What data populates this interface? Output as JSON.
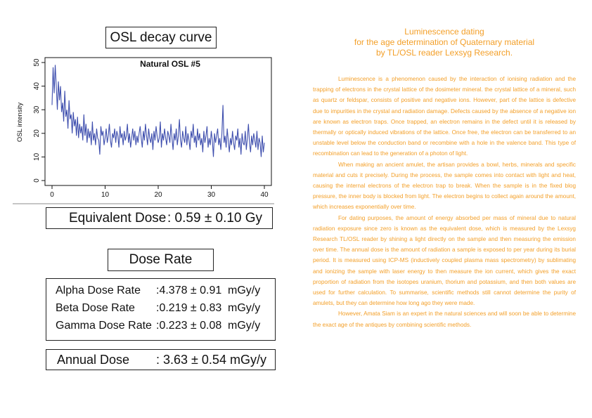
{
  "osl_title": "OSL decay curve",
  "chart_data": {
    "type": "line",
    "title": "Natural OSL #5",
    "xlabel": "",
    "ylabel": "OSL intensity",
    "xlim": [
      0,
      40
    ],
    "ylim": [
      0,
      50
    ],
    "x_ticks": [
      "0",
      "10",
      "20",
      "30",
      "40"
    ],
    "y_ticks": [
      "0",
      "10",
      "20",
      "30",
      "40",
      "50"
    ],
    "grid": false,
    "color": "#3f4fae",
    "x": [
      0.0,
      0.2,
      0.4,
      0.6,
      0.8,
      1.0,
      1.2,
      1.4,
      1.6,
      1.8,
      2.0,
      2.2,
      2.4,
      2.6,
      2.8,
      3.0,
      3.2,
      3.4,
      3.6,
      3.8,
      4.0,
      4.2,
      4.4,
      4.6,
      4.8,
      5.0,
      5.2,
      5.4,
      5.6,
      5.8,
      6.0,
      6.2,
      6.4,
      6.6,
      6.8,
      7.0,
      7.2,
      7.4,
      7.6,
      7.8,
      8.0,
      8.2,
      8.4,
      8.6,
      8.8,
      9.0,
      9.2,
      9.4,
      9.6,
      9.8,
      10.0,
      10.2,
      10.4,
      10.6,
      10.8,
      11.0,
      11.2,
      11.4,
      11.6,
      11.8,
      12.0,
      12.2,
      12.4,
      12.6,
      12.8,
      13.0,
      13.2,
      13.4,
      13.6,
      13.8,
      14.0,
      14.2,
      14.4,
      14.6,
      14.8,
      15.0,
      15.2,
      15.4,
      15.6,
      15.8,
      16.0,
      16.2,
      16.4,
      16.6,
      16.8,
      17.0,
      17.2,
      17.4,
      17.6,
      17.8,
      18.0,
      18.2,
      18.4,
      18.6,
      18.8,
      19.0,
      19.2,
      19.4,
      19.6,
      19.8,
      20.0,
      20.2,
      20.4,
      20.6,
      20.8,
      21.0,
      21.2,
      21.4,
      21.6,
      21.8,
      22.0,
      22.2,
      22.4,
      22.6,
      22.8,
      23.0,
      23.2,
      23.4,
      23.6,
      23.8,
      24.0,
      24.2,
      24.4,
      24.6,
      24.8,
      25.0,
      25.2,
      25.4,
      25.6,
      25.8,
      26.0,
      26.2,
      26.4,
      26.6,
      26.8,
      27.0,
      27.2,
      27.4,
      27.6,
      27.8,
      28.0,
      28.2,
      28.4,
      28.6,
      28.8,
      29.0,
      29.2,
      29.4,
      29.6,
      29.8,
      30.0,
      30.2,
      30.4,
      30.6,
      30.8,
      31.0,
      31.2,
      31.4,
      31.6,
      31.8,
      32.0,
      32.2,
      32.4,
      32.6,
      32.8,
      33.0,
      33.2,
      33.4,
      33.6,
      33.8,
      34.0,
      34.2,
      34.4,
      34.6,
      34.8,
      35.0,
      35.2,
      35.4,
      35.6,
      35.8,
      36.0,
      36.2,
      36.4,
      36.6,
      36.8,
      37.0,
      37.2,
      37.4,
      37.6,
      37.8,
      38.0,
      38.2,
      38.4,
      38.6,
      38.8,
      39.0,
      39.2,
      39.4,
      39.6,
      39.8,
      40.0
    ],
    "y": [
      32,
      48,
      37,
      49,
      40,
      30,
      42,
      34,
      40,
      29,
      33,
      25,
      38,
      27,
      30,
      22,
      34,
      26,
      28,
      20,
      29,
      23,
      26,
      19,
      27,
      18,
      24,
      20,
      23,
      17,
      28,
      19,
      24,
      16,
      22,
      18,
      21,
      15,
      25,
      17,
      20,
      15,
      22,
      18,
      17,
      11,
      23,
      19,
      21,
      15,
      18,
      22,
      16,
      19,
      24,
      17,
      14,
      20,
      18,
      22,
      16,
      21,
      19,
      14,
      23,
      18,
      20,
      15,
      21,
      17,
      19,
      24,
      16,
      20,
      14,
      18,
      22,
      17,
      21,
      15,
      19,
      16,
      20,
      23,
      18,
      14,
      21,
      17,
      24,
      19,
      15,
      22,
      18,
      16,
      20,
      13,
      21,
      17,
      23,
      19,
      16,
      18,
      25,
      14,
      20,
      17,
      22,
      18,
      15,
      21,
      19,
      16,
      24,
      18,
      13,
      20,
      17,
      22,
      15,
      19,
      26,
      17,
      14,
      21,
      18,
      16,
      23,
      15,
      20,
      17,
      13,
      21,
      18,
      24,
      16,
      19,
      14,
      22,
      17,
      20,
      15,
      18,
      12,
      21,
      16,
      19,
      23,
      14,
      18,
      15,
      21,
      17,
      10,
      20,
      16,
      19,
      22,
      15,
      18,
      13,
      20,
      32,
      16,
      19,
      14,
      22,
      17,
      12,
      18,
      15,
      21,
      16,
      13,
      19,
      17,
      22,
      14,
      18,
      11,
      20,
      16,
      15,
      21,
      13,
      18,
      24,
      16,
      12,
      19,
      15,
      20,
      17,
      14,
      21,
      13,
      18,
      16,
      10,
      19,
      12,
      16
    ],
    "text_label": "Natural OSL #5"
  },
  "equivalent_dose": {
    "label": "Equivalent Dose",
    "value": ": 0.59 ± 0.10 Gy"
  },
  "dose_rate_title": "Dose Rate",
  "dose_rates": [
    {
      "name": "Alpha Dose Rate",
      "value": ":4.378 ± 0.91",
      "unit": "mGy/y"
    },
    {
      "name": "Beta Dose Rate",
      "value": ":0.219 ± 0.83",
      "unit": "mGy/y"
    },
    {
      "name": "Gamma Dose Rate",
      "value": ":0.223 ± 0.08",
      "unit": "mGy/y"
    }
  ],
  "annual_dose": {
    "label": "Annual Dose",
    "value": ": 3.63 ± 0.54 mGy/y"
  },
  "article": {
    "title_lines": [
      "Luminescence dating",
      "for the age determination of Quaternary material",
      "by TL/OSL reader Lexsyg Research."
    ],
    "paragraphs": [
      "Luminescence is a phenomenon caused by the interaction of ionising radiation and the trapping of electrons in the crystal lattice of the dosimeter mineral. the crystal lattice of a mineral, such as quartz or feldspar, consists of positive and negative ions. However, part of the lattice is defective due to impurities in the crystal and radiation damage. Defects caused by the absence of a negative ion are known as electron traps. Once trapped, an electron remains in the defect until it is released by thermally or optically induced vibrations of the lattice. Once free, the electron can be transferred to an unstable level below the conduction band or recombine with a hole in the valence band. This type of recombination can lead to the generation of a photon of light.",
      "When making an ancient amulet, the artisan provides a bowl, herbs, minerals and specific material and cuts it precisely. During the process, the sample comes into contact with light and heat, causing the internal electrons of the electron trap to break. When the sample is in the fixed blog pressure, the inner body is blocked from light. The electron begins to collect again around the amount, which increases exponentially over time.",
      "For dating purposes, the amount of energy absorbed per mass of mineral due to natural radiation exposure since zero is known as the equivalent dose, which is measured by the Lexsyg Research TL/OSL reader by shining a light directly on the sample and then measuring the emission over time. The annual dose is the amount of radiation a sample is exposed to per year during its burial period. It is measured using ICP-MS (inductively coupled plasma mass spectrometry) by sublimating and ionizing the sample with laser energy to then measure the ion current, which gives the exact proportion of radiation from the isotopes uranium, thorium and potassium, and then both values are used for further calculation. To summarise, scientific methods still cannot determine the purity of amulets, but they can determine how long ago they were made.",
      "However, Amata Siam is an expert in the natural sciences and will soon be able to determine the exact age of the antiques by combining scientific methods."
    ]
  }
}
